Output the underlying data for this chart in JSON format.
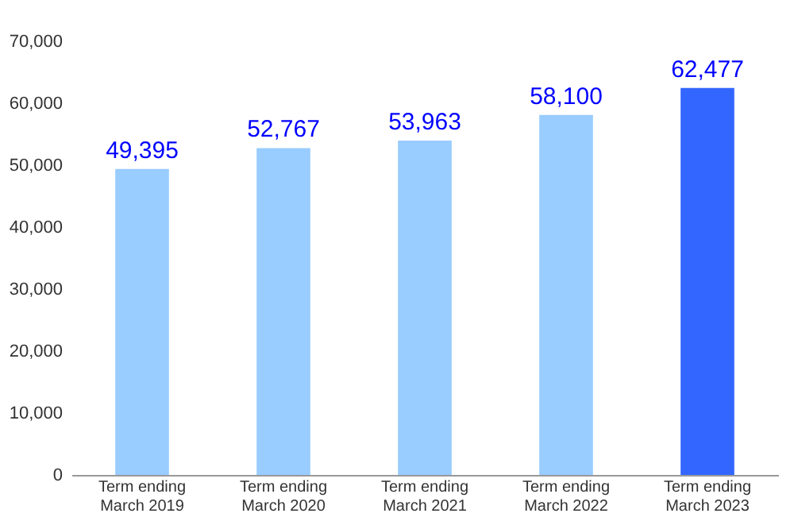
{
  "chart_data": {
    "type": "bar",
    "categories": [
      "Term ending\nMarch 2019",
      "Term ending\nMarch 2020",
      "Term ending\nMarch 2021",
      "Term ending\nMarch 2022",
      "Term ending\nMarch 2023"
    ],
    "values": [
      49395,
      52767,
      53963,
      58100,
      62477
    ],
    "value_labels": [
      "49,395",
      "52,767",
      "53,963",
      "58,100",
      "62,477"
    ],
    "colors": [
      "#99ccff",
      "#99ccff",
      "#99ccff",
      "#99ccff",
      "#3366ff"
    ],
    "ylim": [
      0,
      70000
    ],
    "yticks": [
      0,
      {
        "value": 10000,
        "label": "10,000"
      },
      {
        "value": 20000,
        "label": "20,000"
      },
      {
        "value": 30000,
        "label": "30,000"
      },
      {
        "value": 40000,
        "label": "40,000"
      },
      {
        "value": 50000,
        "label": "50,000"
      },
      {
        "value": 60000,
        "label": "60,000"
      },
      {
        "value": 70000,
        "label": "70,000"
      }
    ],
    "grid": false
  }
}
